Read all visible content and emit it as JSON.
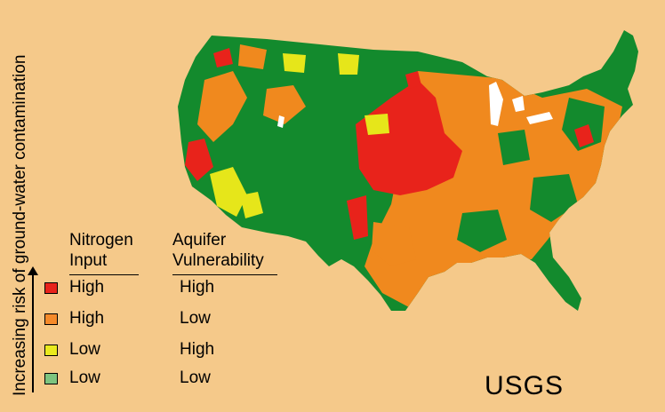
{
  "side_label": "Increasing risk of ground-water contamination",
  "legend": {
    "header_col1": [
      "Nitrogen",
      "Input"
    ],
    "header_col2": [
      "Aquifer",
      "Vulnerability"
    ],
    "rows": [
      {
        "nitrogen": "High",
        "aquifer": "High",
        "color": "#e8231b"
      },
      {
        "nitrogen": "High",
        "aquifer": "Low",
        "color": "#f58a2a"
      },
      {
        "nitrogen": "Low",
        "aquifer": "High",
        "color": "#eaea1e"
      },
      {
        "nitrogen": "Low",
        "aquifer": "Low",
        "color": "#7dc47f"
      }
    ]
  },
  "map_colors": {
    "low_low": "#138a2d",
    "high_low": "#f0891e",
    "high_high": "#e8231b",
    "low_high": "#e6e61a",
    "water": "#ffffff"
  },
  "brand": "USGS"
}
